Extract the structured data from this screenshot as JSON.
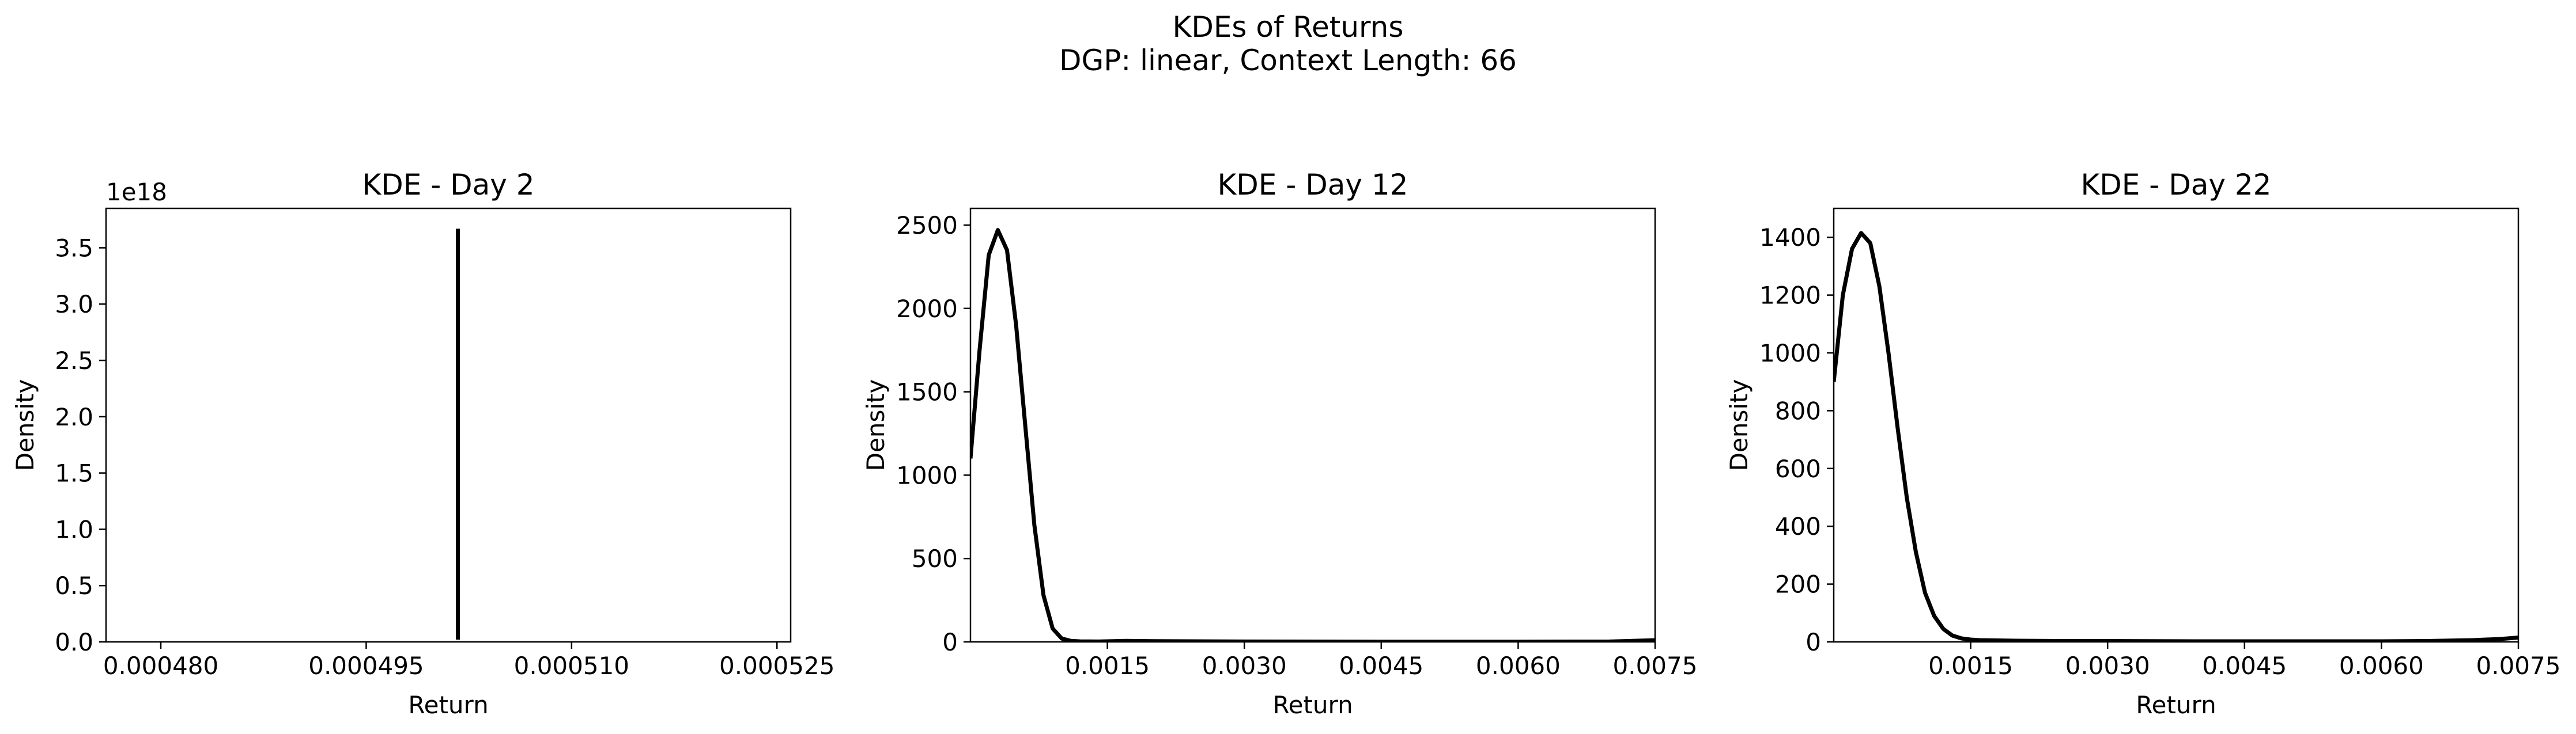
{
  "figure": {
    "title_line1": "KDEs of Returns",
    "title_line2": "DGP: linear, Context Length: 66"
  },
  "chart_data": [
    {
      "type": "line",
      "title": "KDE - Day 2",
      "xlabel": "Return",
      "ylabel": "Density",
      "xlim": [
        0.000476,
        0.000526
      ],
      "ylim": [
        0,
        3.85e+18
      ],
      "offset_text": "1e18",
      "x_ticks": [
        0.00048,
        0.000495,
        0.00051,
        0.000525
      ],
      "x_tick_labels": [
        "0.000480",
        "0.000495",
        "0.000510",
        "0.000525"
      ],
      "y_ticks": [
        0,
        5e+17,
        1e+18,
        1.5e+18,
        2e+18,
        2.5e+18,
        3e+18,
        3.5e+18
      ],
      "y_tick_labels": [
        "0.0",
        "0.5",
        "1.0",
        "1.5",
        "2.0",
        "2.5",
        "3.0",
        "3.5"
      ],
      "series": [
        {
          "x": [
            0.0005017,
            0.0005017
          ],
          "y": [
            2e+16,
            3.67e+18
          ]
        }
      ],
      "line_color": "#000000",
      "grid": false
    },
    {
      "type": "line",
      "title": "KDE - Day 12",
      "xlabel": "Return",
      "ylabel": "Density",
      "xlim": [
        0.0,
        0.0075
      ],
      "ylim": [
        0,
        2600
      ],
      "x_ticks": [
        0.0015,
        0.003,
        0.0045,
        0.006,
        0.0075
      ],
      "x_tick_labels": [
        "0.0015",
        "0.0030",
        "0.0045",
        "0.0060",
        "0.0075"
      ],
      "y_ticks": [
        0,
        500,
        1000,
        1500,
        2000,
        2500
      ],
      "y_tick_labels": [
        "0",
        "500",
        "1000",
        "1500",
        "2000",
        "2500"
      ],
      "series": [
        {
          "x": [
            0.0,
            0.0001,
            0.0002,
            0.0003,
            0.0004,
            0.0005,
            0.0006,
            0.0007,
            0.0008,
            0.0009,
            0.001,
            0.0011,
            0.0012,
            0.0014,
            0.0017,
            0.002,
            0.003,
            0.0045,
            0.006,
            0.007,
            0.0075
          ],
          "y": [
            1100,
            1750,
            2320,
            2470,
            2350,
            1900,
            1300,
            700,
            280,
            80,
            20,
            6,
            3,
            2,
            6,
            4,
            2,
            1,
            1,
            2,
            10
          ]
        }
      ],
      "line_color": "#000000",
      "grid": false
    },
    {
      "type": "line",
      "title": "KDE - Day 22",
      "xlabel": "Return",
      "ylabel": "Density",
      "xlim": [
        0.0,
        0.0075
      ],
      "ylim": [
        0,
        1500
      ],
      "x_ticks": [
        0.0015,
        0.003,
        0.0045,
        0.006,
        0.0075
      ],
      "x_tick_labels": [
        "0.0015",
        "0.0030",
        "0.0045",
        "0.0060",
        "0.0075"
      ],
      "y_ticks": [
        0,
        200,
        400,
        600,
        800,
        1000,
        1200,
        1400
      ],
      "y_tick_labels": [
        "0",
        "200",
        "400",
        "600",
        "800",
        "1000",
        "1200",
        "1400"
      ],
      "series": [
        {
          "x": [
            0.0,
            0.0001,
            0.0002,
            0.0003,
            0.0004,
            0.0005,
            0.0006,
            0.0007,
            0.0008,
            0.0009,
            0.001,
            0.0011,
            0.0012,
            0.0013,
            0.0014,
            0.0015,
            0.0016,
            0.0018,
            0.002,
            0.0025,
            0.003,
            0.004,
            0.005,
            0.006,
            0.0065,
            0.007,
            0.0073,
            0.0075
          ],
          "y": [
            900,
            1200,
            1360,
            1415,
            1380,
            1230,
            1000,
            740,
            500,
            310,
            170,
            90,
            45,
            22,
            12,
            8,
            6,
            5,
            4,
            3,
            3,
            2,
            2,
            2,
            3,
            6,
            10,
            15
          ]
        }
      ],
      "line_color": "#000000",
      "grid": false
    }
  ]
}
